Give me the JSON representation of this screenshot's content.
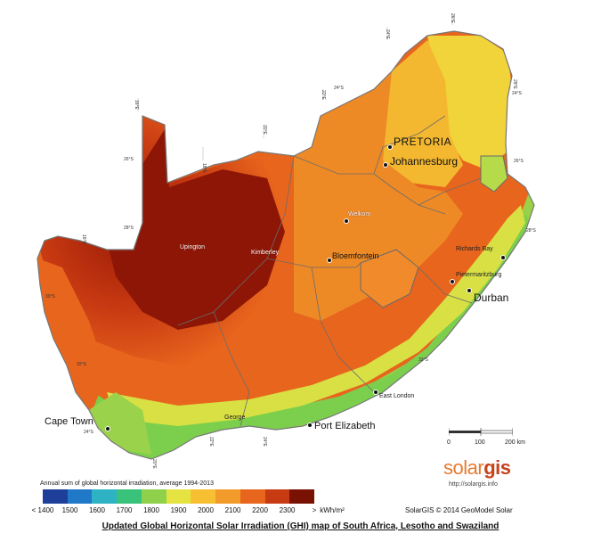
{
  "caption": "Updated Global Horizontal Solar Irradiation (GHI) map of South Africa, Lesotho and Swaziland",
  "legend": {
    "title": "Annual sum of global horizontal irradiation, average 1994-2013",
    "ticks": [
      "< 1400",
      "1500",
      "1600",
      "1700",
      "1800",
      "1900",
      "2000",
      "2100",
      "2200",
      "2300",
      ">"
    ],
    "unit": "kWh/m²",
    "colors": [
      "#1d3f9a",
      "#1f78c8",
      "#2eb3c4",
      "#39c27a",
      "#8fd14a",
      "#e5e342",
      "#f7c033",
      "#f29a2a",
      "#e8651d",
      "#c83a12",
      "#7a1204"
    ]
  },
  "scale": {
    "ticks": [
      "0",
      "100",
      "200 km"
    ]
  },
  "brand": {
    "solar": "solar",
    "gis": "gis",
    "url": "http://solargis.info"
  },
  "copyright": "SolarGIS © 2014 GeoModel Solar",
  "cities": {
    "pretoria": "PRETORIA",
    "johannesburg": "Johannesburg",
    "durban": "Durban",
    "richards_bay": "Richards Bay",
    "pietermaritzburg": "Pietermaritzburg",
    "bloemfontein": "Bloemfontein",
    "welkom": "Welkom",
    "kimberley": "Kimberley",
    "upington": "Upington",
    "east_london": "East London",
    "port_elizabeth": "Port Elizabeth",
    "george": "George",
    "cape_town": "Cape Town"
  },
  "grid_labels": {
    "lat_22": "22°S",
    "lat_24": "24°S",
    "lat_26": "26°S",
    "lat_28": "28°S",
    "lat_30": "30°S",
    "lat_32": "32°S",
    "lat_34": "34°S",
    "lon_16": "16°E",
    "lon_18": "18°E",
    "lon_20": "20°E",
    "lon_22": "22°E",
    "lon_24": "24°E",
    "lon_26": "26°E",
    "lon_28": "28°E",
    "lon_30": "30°E",
    "lon_32": "32°E"
  }
}
